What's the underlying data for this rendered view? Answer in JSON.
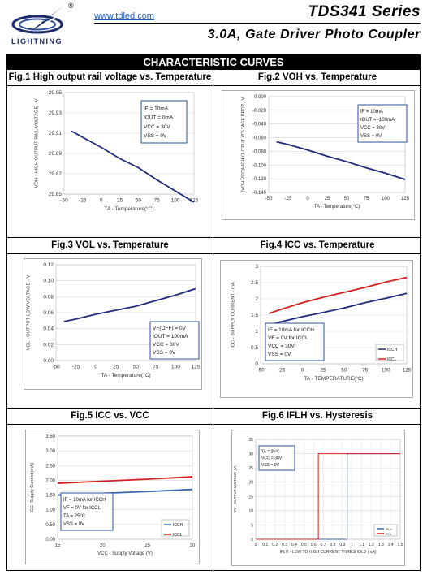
{
  "header": {
    "brand": "LIGHTNING",
    "registered_mark": "®",
    "website": "www.tdled.com",
    "model": "TDS341  Series",
    "subtitle": "3.0A,  Gate  Driver  Photo  Coupler"
  },
  "section_title": "CHARACTERISTIC CURVES",
  "colors": {
    "navy": "#1f2a7a",
    "red": "#d42020",
    "blue": "#3a66b0",
    "box": "#2a4f9a"
  },
  "figures": [
    {
      "title": "Fig.1 High output rail voltage vs. Temperature",
      "ylabel": "VOH - HIGH OUTPUT RAIL VOLTAGE - V",
      "xlabel": "TA - Temperature(°C)",
      "conditions": [
        "IF = 10mA",
        "IOUT = 0mA",
        "VCC = 30V",
        "VSS = 0V"
      ]
    },
    {
      "title": "Fig.2 VOH vs. Temperature",
      "ylabel": "(VOH-VCC)HIGH OUTPUT VOLTAGE DROP - V",
      "xlabel": "TA - Temperature(°C)",
      "conditions": [
        "IF = 10mA",
        "IOUT = -100mA",
        "VCC = 30V",
        "VSS = 0V"
      ]
    },
    {
      "title": "Fig.3 VOL vs. Temperature",
      "ylabel": "VOL - OUTPUT LOW VOLTAGE - V",
      "xlabel": "TA - Temperature(°C)",
      "conditions": [
        "VF(OFF) = 0V",
        "IOUT = 100mA",
        "VCC = 30V",
        "VSS = 0V"
      ]
    },
    {
      "title": "Fig.4 ICC vs. Temperature",
      "ylabel": "ICC - SUPPLY CURRENT - mA",
      "xlabel": "TA - TEMPERATURE(°C)",
      "conditions": [
        "IF = 10mA for ICCH",
        "VF = 0V for ICCL",
        "VCC = 30V",
        "VSS = 0V"
      ]
    },
    {
      "title": "Fig.5 ICC vs. VCC",
      "ylabel": "ICC- Supply Current (mA)",
      "xlabel": "VCC - Supply Voltage  (V)",
      "conditions": [
        "IF = 10mA for ICCH",
        "VF = 0V for ICCL",
        "TA = 25°C",
        "VSS = 0V"
      ]
    },
    {
      "title": "Fig.6 IFLH vs. Hysteresis",
      "ylabel": "VO - OUTPUT VOLTAGE (V)",
      "xlabel": "IFLH - LOW TO HIGH CURRENT THRESHOLD (mA)",
      "conditions": [
        "TA = 25°C",
        "VCC = 30V",
        "VSS = 0V"
      ]
    }
  ],
  "chart_data": [
    {
      "type": "line",
      "x": [
        -40,
        -25,
        0,
        25,
        50,
        75,
        100,
        125
      ],
      "series": [
        {
          "values": [
            29.912,
            29.906,
            29.896,
            29.885,
            29.876,
            29.864,
            29.853,
            29.842
          ]
        }
      ],
      "xticks": [
        "-50",
        "-25",
        "0",
        "25",
        "50",
        "75",
        "100",
        "125"
      ],
      "xlim": [
        -50,
        125
      ],
      "yticks": [
        "29.85",
        "29.87",
        "29.89",
        "29.91",
        "29.93",
        "29.95"
      ],
      "ylim": [
        29.85,
        29.95
      ]
    },
    {
      "type": "line",
      "x": [
        -40,
        -25,
        0,
        25,
        50,
        75,
        100,
        125
      ],
      "series": [
        {
          "values": [
            -0.066,
            -0.07,
            -0.078,
            -0.087,
            -0.095,
            -0.104,
            -0.112,
            -0.121
          ]
        }
      ],
      "xticks": [
        "-50",
        "-25",
        "0",
        "25",
        "50",
        "75",
        "100",
        "125"
      ],
      "xlim": [
        -50,
        125
      ],
      "yticks": [
        "0.000",
        "-0.020",
        "-0.040",
        "-0.060",
        "-0.080",
        "-0.100",
        "-0.120",
        "-0.140"
      ],
      "ylim": [
        -0.14,
        0
      ]
    },
    {
      "type": "line",
      "x": [
        -40,
        -25,
        0,
        25,
        50,
        75,
        100,
        125
      ],
      "series": [
        {
          "values": [
            0.049,
            0.052,
            0.058,
            0.063,
            0.068,
            0.075,
            0.082,
            0.09
          ]
        }
      ],
      "xticks": [
        "-50",
        "-25",
        "0",
        "25",
        "50",
        "75",
        "100",
        "125"
      ],
      "xlim": [
        -50,
        125
      ],
      "yticks": [
        "0.00",
        "0.02",
        "0.04",
        "0.06",
        "0.08",
        "0.10",
        "0.12"
      ],
      "ylim": [
        0,
        0.12
      ]
    },
    {
      "type": "line",
      "x": [
        -40,
        -25,
        0,
        25,
        50,
        75,
        100,
        125
      ],
      "series": [
        {
          "name": "ICCH",
          "values": [
            1.2,
            1.3,
            1.45,
            1.58,
            1.72,
            1.88,
            2.02,
            2.17
          ]
        },
        {
          "name": "ICCL",
          "values": [
            1.55,
            1.68,
            1.88,
            2.05,
            2.2,
            2.35,
            2.52,
            2.66
          ]
        }
      ],
      "xticks": [
        "-50",
        "-25",
        "0",
        "25",
        "50",
        "75",
        "100",
        "125"
      ],
      "xlim": [
        -50,
        125
      ],
      "yticks": [
        "0",
        "0.5",
        "1",
        "1.5",
        "2",
        "2.5",
        "3"
      ],
      "ylim": [
        0,
        3
      ],
      "legend": "bottom-right"
    },
    {
      "type": "line",
      "x": [
        15,
        20,
        25,
        30
      ],
      "series": [
        {
          "name": "ICCH",
          "values": [
            1.5,
            1.56,
            1.62,
            1.69
          ]
        },
        {
          "name": "ICCL",
          "values": [
            1.9,
            1.97,
            2.04,
            2.12
          ]
        }
      ],
      "xticks": [
        "15",
        "20",
        "25",
        "30"
      ],
      "xlim": [
        15,
        30
      ],
      "yticks": [
        "0.00",
        "0.50",
        "1.00",
        "1.50",
        "2.00",
        "2.50",
        "3.00",
        "3.50"
      ],
      "ylim": [
        0,
        3.5
      ],
      "legend": "bottom-right"
    },
    {
      "type": "line",
      "series": [
        {
          "name": "IFLH",
          "x": [
            0,
            0.95,
            0.95,
            1.5
          ],
          "values": [
            0,
            0,
            30,
            30
          ]
        },
        {
          "name": "IFHL",
          "x": [
            0,
            0.65,
            0.65,
            1.5
          ],
          "values": [
            0,
            0,
            30,
            30
          ]
        }
      ],
      "xticks": [
        "0",
        "0.1",
        "0.2",
        "0.3",
        "0.4",
        "0.5",
        "0.6",
        "0.7",
        "0.8",
        "0.9",
        "1",
        "1.1",
        "1.2",
        "1.3",
        "1.4",
        "1.5"
      ],
      "xlim": [
        0,
        1.5
      ],
      "yticks": [
        "0",
        "5",
        "10",
        "15",
        "20",
        "25",
        "30",
        "35"
      ],
      "ylim": [
        0,
        35
      ],
      "legend": "bottom-right"
    }
  ]
}
